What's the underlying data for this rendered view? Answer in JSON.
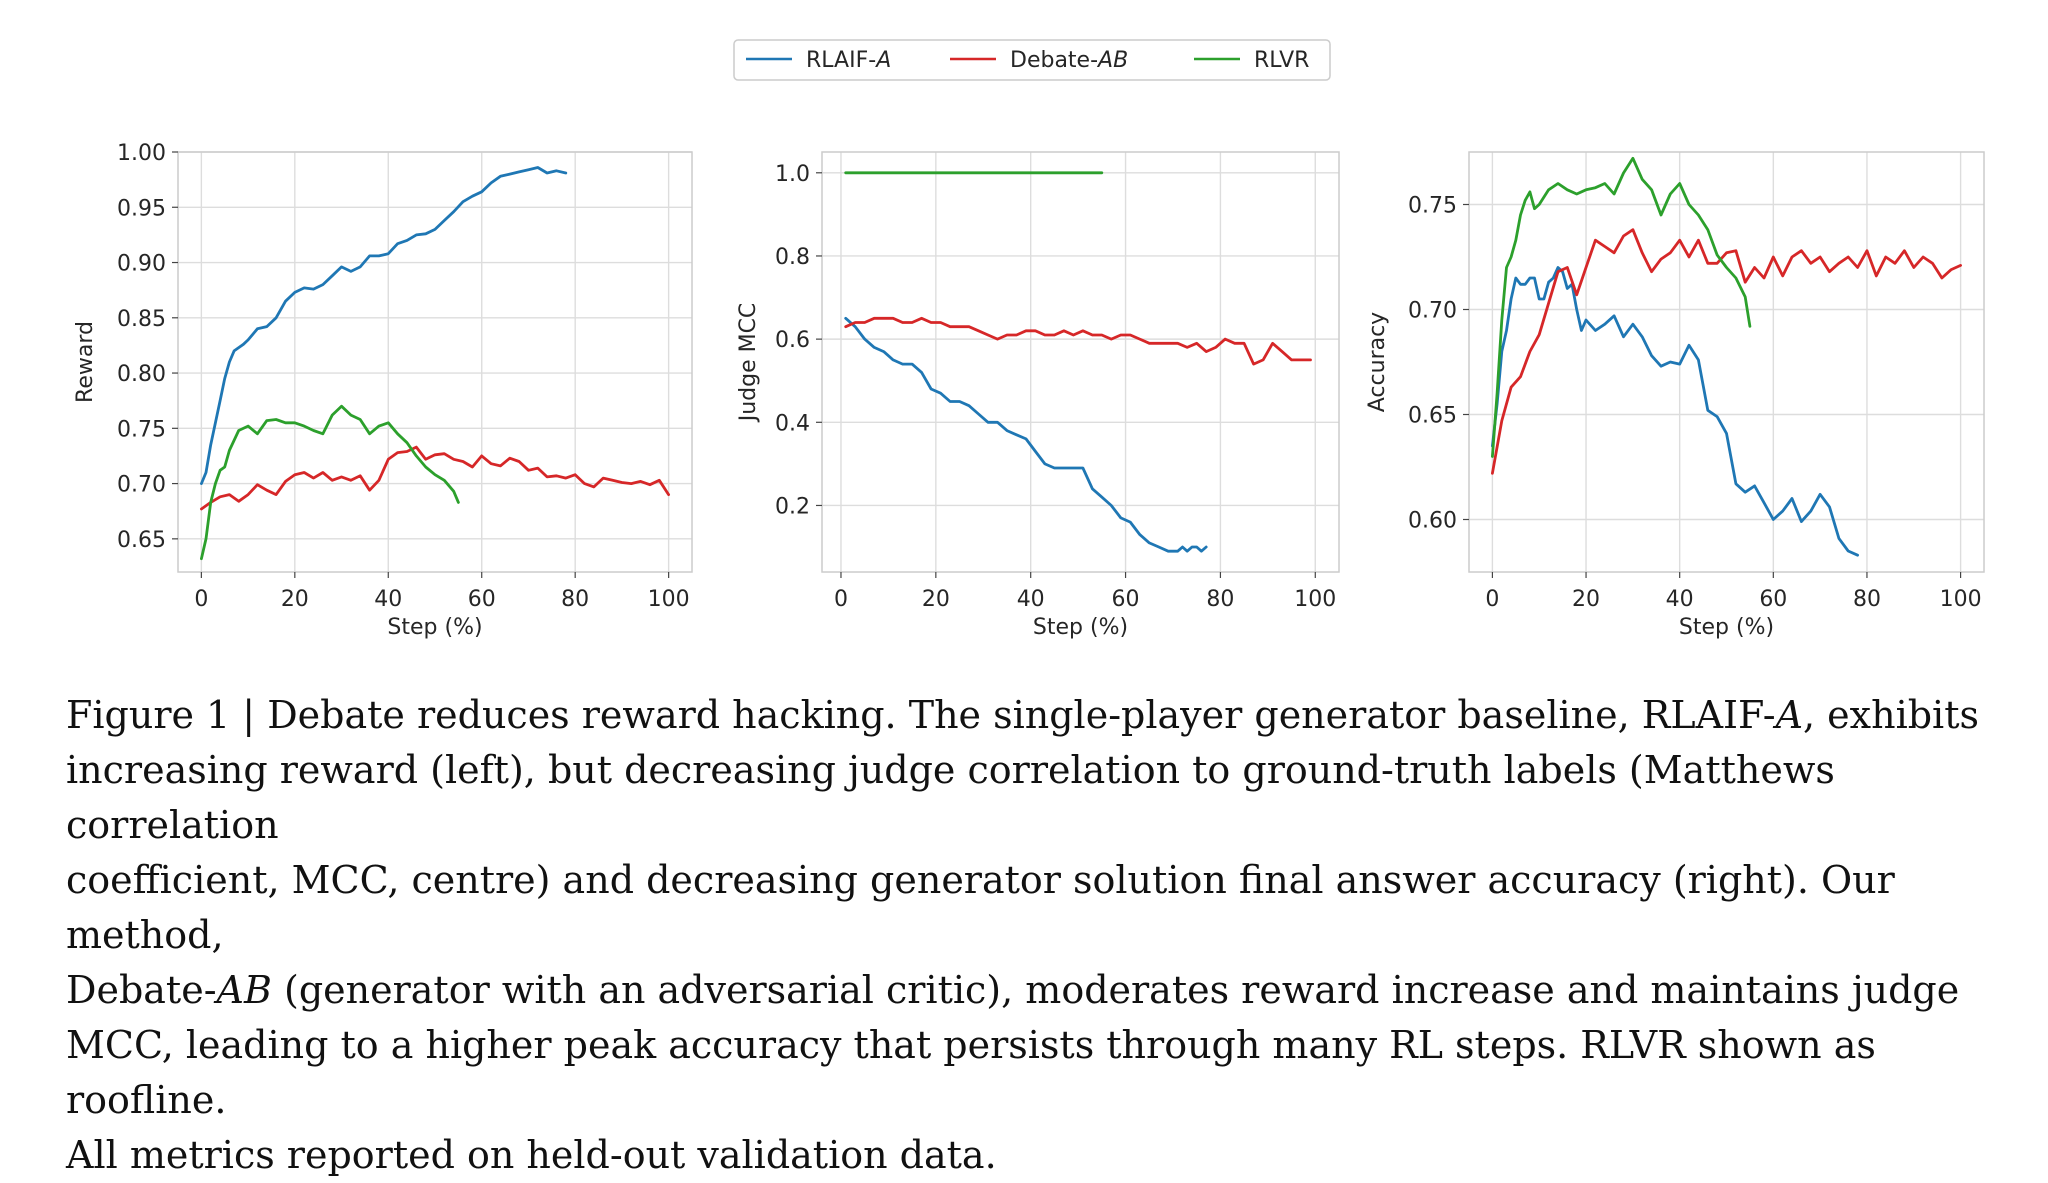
{
  "legend": {
    "items": [
      {
        "base": "RLAIF-",
        "italic": "A",
        "color": "#1f77b4"
      },
      {
        "base": "Debate-",
        "italic": "AB",
        "color": "#d62728"
      },
      {
        "base": "RLVR",
        "italic": "",
        "color": "#2ca02c"
      }
    ]
  },
  "caption": {
    "lines": [
      [
        "Figure 1 | Debate reduces reward hacking. The single-player generator baseline, RLAIF-",
        {
          "i": "A"
        },
        ", exhibits"
      ],
      [
        "increasing reward (left), but decreasing judge correlation to ground-truth labels (Matthews correlation"
      ],
      [
        "coefficient, MCC, centre) and decreasing generator solution final answer accuracy (right). Our method,"
      ],
      [
        "Debate-",
        {
          "i": "AB"
        },
        " (generator with an adversarial critic), moderates reward increase and maintains judge"
      ],
      [
        "MCC, leading to a higher peak accuracy that persists through many RL steps. RLVR shown as roofline."
      ],
      [
        "All metrics reported on held-out validation data."
      ]
    ]
  },
  "chart_data": [
    {
      "type": "line",
      "title": "",
      "xlabel": "Step (%)",
      "ylabel": "Reward",
      "xlim": [
        -5,
        105
      ],
      "ylim": [
        0.62,
        1.0
      ],
      "xticks": [
        0,
        20,
        40,
        60,
        80,
        100
      ],
      "yticks": [
        0.65,
        0.7,
        0.75,
        0.8,
        0.85,
        0.9,
        0.95,
        1.0
      ],
      "ytick_labels": [
        "0.65",
        "0.70",
        "0.75",
        "0.80",
        "0.85",
        "0.90",
        "0.95",
        "1.00"
      ],
      "grid": true,
      "series": [
        {
          "name": "RLAIF-A",
          "color": "#1f77b4",
          "x": [
            0,
            1,
            2,
            3,
            4,
            5,
            6,
            7,
            8,
            9,
            10,
            12,
            14,
            16,
            18,
            20,
            22,
            24,
            26,
            28,
            30,
            32,
            34,
            36,
            38,
            40,
            42,
            44,
            46,
            48,
            50,
            52,
            54,
            56,
            58,
            60,
            62,
            64,
            66,
            68,
            70,
            72,
            74,
            76,
            78
          ],
          "y": [
            0.7,
            0.71,
            0.735,
            0.755,
            0.775,
            0.795,
            0.81,
            0.82,
            0.823,
            0.826,
            0.83,
            0.84,
            0.842,
            0.85,
            0.865,
            0.873,
            0.877,
            0.876,
            0.88,
            0.888,
            0.896,
            0.892,
            0.896,
            0.906,
            0.906,
            0.908,
            0.917,
            0.92,
            0.925,
            0.926,
            0.93,
            0.938,
            0.946,
            0.955,
            0.96,
            0.964,
            0.972,
            0.978,
            0.98,
            0.982,
            0.984,
            0.986,
            0.981,
            0.983,
            0.981
          ]
        },
        {
          "name": "Debate-AB",
          "color": "#d62728",
          "x": [
            0,
            2,
            4,
            6,
            8,
            10,
            12,
            14,
            16,
            18,
            20,
            22,
            24,
            26,
            28,
            30,
            32,
            34,
            36,
            38,
            40,
            42,
            44,
            46,
            48,
            50,
            52,
            54,
            56,
            58,
            60,
            62,
            64,
            66,
            68,
            70,
            72,
            74,
            76,
            78,
            80,
            82,
            84,
            86,
            88,
            90,
            92,
            94,
            96,
            98,
            100
          ],
          "y": [
            0.677,
            0.683,
            0.688,
            0.69,
            0.684,
            0.69,
            0.699,
            0.694,
            0.69,
            0.702,
            0.708,
            0.71,
            0.705,
            0.71,
            0.703,
            0.706,
            0.703,
            0.707,
            0.694,
            0.703,
            0.722,
            0.728,
            0.729,
            0.733,
            0.722,
            0.726,
            0.727,
            0.722,
            0.72,
            0.715,
            0.725,
            0.718,
            0.716,
            0.723,
            0.72,
            0.712,
            0.714,
            0.706,
            0.707,
            0.705,
            0.708,
            0.7,
            0.697,
            0.705,
            0.703,
            0.701,
            0.7,
            0.702,
            0.699,
            0.703,
            0.69
          ]
        },
        {
          "name": "RLVR",
          "color": "#2ca02c",
          "x": [
            0,
            1,
            2,
            3,
            4,
            5,
            6,
            8,
            10,
            12,
            14,
            16,
            18,
            20,
            22,
            24,
            26,
            28,
            30,
            32,
            34,
            36,
            38,
            40,
            42,
            44,
            46,
            48,
            50,
            52,
            54,
            55
          ],
          "y": [
            0.632,
            0.65,
            0.683,
            0.7,
            0.712,
            0.715,
            0.73,
            0.748,
            0.752,
            0.745,
            0.757,
            0.758,
            0.755,
            0.755,
            0.752,
            0.748,
            0.745,
            0.762,
            0.77,
            0.762,
            0.758,
            0.745,
            0.752,
            0.755,
            0.745,
            0.737,
            0.725,
            0.715,
            0.708,
            0.703,
            0.693,
            0.683
          ]
        }
      ]
    },
    {
      "type": "line",
      "title": "",
      "xlabel": "Step (%)",
      "ylabel": "Judge MCC",
      "xlim": [
        -4,
        105
      ],
      "ylim": [
        0.04,
        1.05
      ],
      "xticks": [
        0,
        20,
        40,
        60,
        80,
        100
      ],
      "yticks": [
        0.2,
        0.4,
        0.6,
        0.8,
        1.0
      ],
      "ytick_labels": [
        "0.2",
        "0.4",
        "0.6",
        "0.8",
        "1.0"
      ],
      "grid": true,
      "series": [
        {
          "name": "RLAIF-A",
          "color": "#1f77b4",
          "x": [
            1,
            3,
            5,
            7,
            9,
            11,
            13,
            15,
            17,
            19,
            21,
            23,
            25,
            27,
            29,
            31,
            33,
            35,
            37,
            39,
            41,
            43,
            45,
            47,
            49,
            51,
            53,
            55,
            57,
            59,
            61,
            63,
            65,
            67,
            69,
            71,
            72,
            73,
            74,
            75,
            76,
            77
          ],
          "y": [
            0.65,
            0.63,
            0.6,
            0.58,
            0.57,
            0.55,
            0.54,
            0.54,
            0.52,
            0.48,
            0.47,
            0.45,
            0.45,
            0.44,
            0.42,
            0.4,
            0.4,
            0.38,
            0.37,
            0.36,
            0.33,
            0.3,
            0.29,
            0.29,
            0.29,
            0.29,
            0.24,
            0.22,
            0.2,
            0.17,
            0.16,
            0.13,
            0.11,
            0.1,
            0.09,
            0.09,
            0.1,
            0.09,
            0.1,
            0.1,
            0.09,
            0.1
          ]
        },
        {
          "name": "Debate-AB",
          "color": "#d62728",
          "x": [
            1,
            3,
            5,
            7,
            9,
            11,
            13,
            15,
            17,
            19,
            21,
            23,
            25,
            27,
            29,
            31,
            33,
            35,
            37,
            39,
            41,
            43,
            45,
            47,
            49,
            51,
            53,
            55,
            57,
            59,
            61,
            63,
            65,
            67,
            69,
            71,
            73,
            75,
            77,
            79,
            81,
            83,
            85,
            87,
            89,
            91,
            93,
            95,
            97,
            99
          ],
          "y": [
            0.63,
            0.64,
            0.64,
            0.65,
            0.65,
            0.65,
            0.64,
            0.64,
            0.65,
            0.64,
            0.64,
            0.63,
            0.63,
            0.63,
            0.62,
            0.61,
            0.6,
            0.61,
            0.61,
            0.62,
            0.62,
            0.61,
            0.61,
            0.62,
            0.61,
            0.62,
            0.61,
            0.61,
            0.6,
            0.61,
            0.61,
            0.6,
            0.59,
            0.59,
            0.59,
            0.59,
            0.58,
            0.59,
            0.57,
            0.58,
            0.6,
            0.59,
            0.59,
            0.54,
            0.55,
            0.59,
            0.57,
            0.55,
            0.55,
            0.55
          ]
        },
        {
          "name": "RLVR",
          "color": "#2ca02c",
          "x": [
            1,
            55
          ],
          "y": [
            1.0,
            1.0
          ]
        }
      ]
    },
    {
      "type": "line",
      "title": "",
      "xlabel": "Step (%)",
      "ylabel": "Accuracy",
      "xlim": [
        -5,
        105
      ],
      "ylim": [
        0.575,
        0.775
      ],
      "xticks": [
        0,
        20,
        40,
        60,
        80,
        100
      ],
      "yticks": [
        0.6,
        0.65,
        0.7,
        0.75
      ],
      "ytick_labels": [
        "0.60",
        "0.65",
        "0.70",
        "0.75"
      ],
      "grid": true,
      "series": [
        {
          "name": "RLAIF-A",
          "color": "#1f77b4",
          "x": [
            0,
            1,
            2,
            3,
            4,
            5,
            6,
            7,
            8,
            9,
            10,
            11,
            12,
            13,
            14,
            15,
            16,
            17,
            18,
            19,
            20,
            22,
            24,
            26,
            28,
            30,
            32,
            34,
            36,
            38,
            40,
            42,
            44,
            46,
            48,
            50,
            52,
            54,
            56,
            58,
            60,
            62,
            64,
            66,
            68,
            70,
            72,
            74,
            76,
            78
          ],
          "y": [
            0.635,
            0.655,
            0.68,
            0.69,
            0.705,
            0.715,
            0.712,
            0.712,
            0.715,
            0.715,
            0.705,
            0.705,
            0.713,
            0.715,
            0.72,
            0.718,
            0.71,
            0.712,
            0.7,
            0.69,
            0.695,
            0.69,
            0.693,
            0.697,
            0.687,
            0.693,
            0.687,
            0.678,
            0.673,
            0.675,
            0.674,
            0.683,
            0.676,
            0.652,
            0.649,
            0.641,
            0.617,
            0.613,
            0.616,
            0.608,
            0.6,
            0.604,
            0.61,
            0.599,
            0.604,
            0.612,
            0.606,
            0.591,
            0.585,
            0.583
          ]
        },
        {
          "name": "Debate-AB",
          "color": "#d62728",
          "x": [
            0,
            2,
            4,
            6,
            8,
            10,
            12,
            14,
            16,
            18,
            20,
            22,
            24,
            26,
            28,
            30,
            32,
            34,
            36,
            38,
            40,
            42,
            44,
            46,
            48,
            50,
            52,
            54,
            56,
            58,
            60,
            62,
            64,
            66,
            68,
            70,
            72,
            74,
            76,
            78,
            80,
            82,
            84,
            86,
            88,
            90,
            92,
            94,
            96,
            98,
            100
          ],
          "y": [
            0.622,
            0.647,
            0.663,
            0.668,
            0.68,
            0.688,
            0.703,
            0.718,
            0.72,
            0.707,
            0.72,
            0.733,
            0.73,
            0.727,
            0.735,
            0.738,
            0.727,
            0.718,
            0.724,
            0.727,
            0.733,
            0.725,
            0.733,
            0.722,
            0.722,
            0.727,
            0.728,
            0.713,
            0.72,
            0.715,
            0.725,
            0.716,
            0.725,
            0.728,
            0.722,
            0.725,
            0.718,
            0.722,
            0.725,
            0.72,
            0.728,
            0.716,
            0.725,
            0.722,
            0.728,
            0.72,
            0.725,
            0.722,
            0.715,
            0.719,
            0.721
          ]
        },
        {
          "name": "RLVR",
          "color": "#2ca02c",
          "x": [
            0,
            1,
            2,
            3,
            4,
            5,
            6,
            7,
            8,
            9,
            10,
            12,
            14,
            16,
            18,
            20,
            22,
            24,
            26,
            28,
            30,
            32,
            34,
            36,
            38,
            40,
            42,
            44,
            46,
            48,
            50,
            52,
            54,
            55
          ],
          "y": [
            0.63,
            0.66,
            0.695,
            0.72,
            0.725,
            0.733,
            0.745,
            0.752,
            0.756,
            0.748,
            0.75,
            0.757,
            0.76,
            0.757,
            0.755,
            0.757,
            0.758,
            0.76,
            0.755,
            0.765,
            0.772,
            0.762,
            0.757,
            0.745,
            0.755,
            0.76,
            0.75,
            0.745,
            0.738,
            0.726,
            0.72,
            0.715,
            0.706,
            0.692
          ]
        }
      ]
    }
  ]
}
